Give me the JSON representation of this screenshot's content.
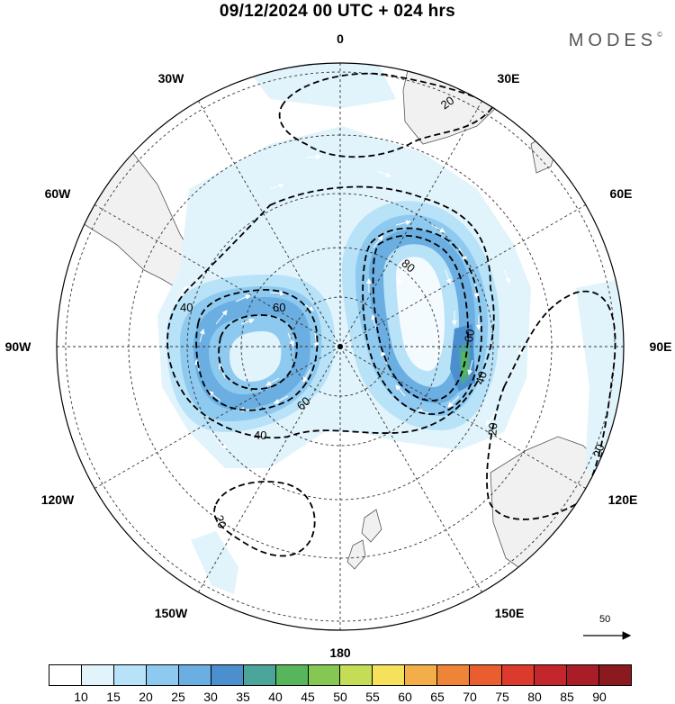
{
  "title": "09/12/2024  00 UTC  + 024 hrs",
  "brand": "MODES",
  "brand_mark": "©",
  "longitude_labels": {
    "n0": "0",
    "n30e": "30E",
    "n60e": "60E",
    "n90e": "90E",
    "n120e": "120E",
    "n150e": "150E",
    "n180": "180",
    "n150w": "150W",
    "n120w": "120W",
    "n90w": "90W",
    "n60w": "60W",
    "n30w": "30W"
  },
  "contour_labels": {
    "a": "20",
    "b": "80",
    "c": "60",
    "d": "40",
    "e": "20",
    "f": "20",
    "g": "40",
    "h": "60",
    "i": "60",
    "j": "40",
    "k": "20"
  },
  "wind_scale_label": "50",
  "colorbar": {
    "colors": [
      "#ffffff",
      "#e1f3fb",
      "#b7e2f8",
      "#8ec9ef",
      "#6aaee2",
      "#4b8fcf",
      "#4ba59a",
      "#57b65c",
      "#86c653",
      "#c4dd57",
      "#f6e15b",
      "#f3ae4a",
      "#ee8438",
      "#e95d2f",
      "#dc3a2d",
      "#c3262b",
      "#a91e26",
      "#8a1a1d"
    ],
    "labels": [
      "10",
      "15",
      "20",
      "25",
      "30",
      "35",
      "40",
      "45",
      "50",
      "55",
      "60",
      "65",
      "70",
      "75",
      "80",
      "85",
      "90"
    ]
  },
  "chart_data": {
    "type": "polar stereographic map",
    "projection": "south polar stereographic",
    "quantity": "wind speed (shaded) with isotachs (dashed contours) and wind vectors",
    "contour_levels": [
      20,
      40,
      60,
      80
    ],
    "shading_levels": [
      10,
      15,
      20,
      25,
      30,
      35,
      40,
      45,
      50,
      55,
      60,
      65,
      70,
      75,
      80,
      85,
      90
    ]
  }
}
